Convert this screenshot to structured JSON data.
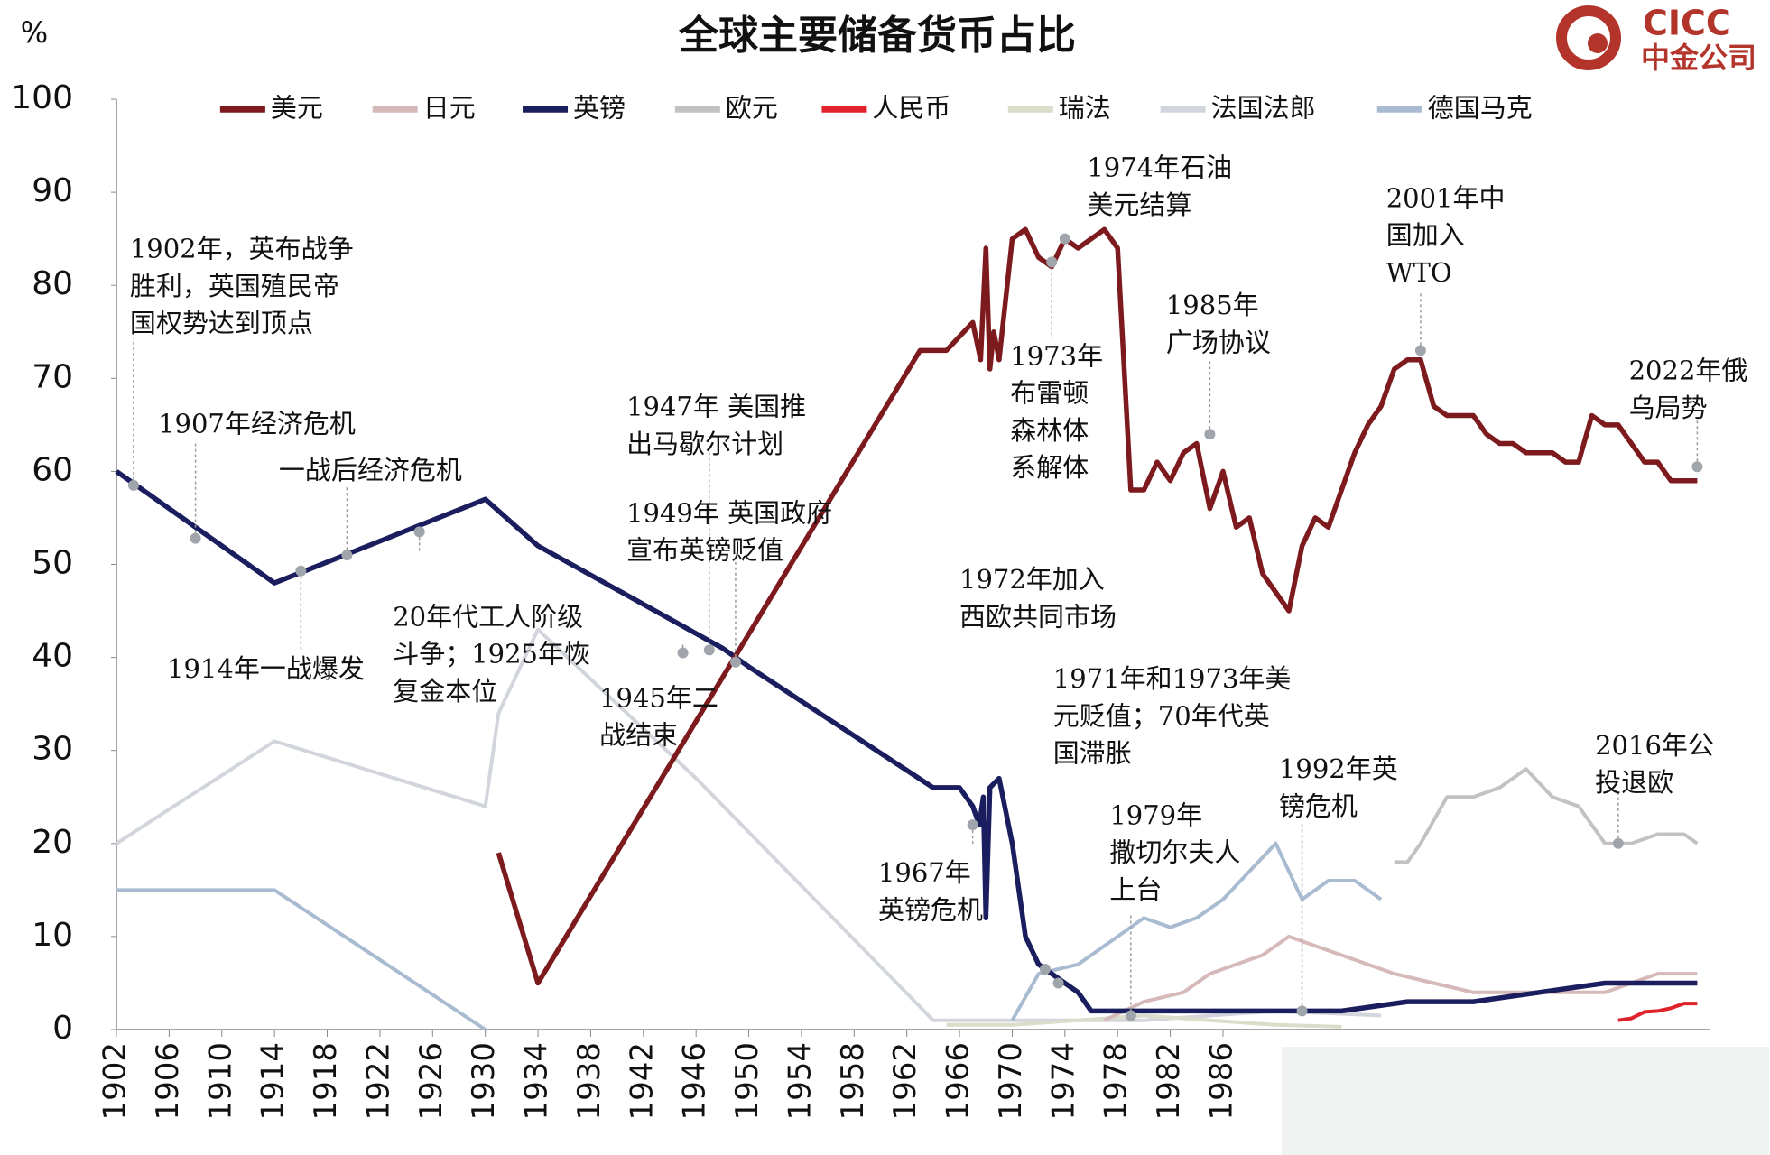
{
  "chart_data": {
    "type": "line",
    "title": "全球主要储备货币占比",
    "y_unit": "%",
    "logo": {
      "name": "CICC",
      "subname": "中金公司"
    },
    "legend": "top",
    "xlim": [
      1902,
      2023
    ],
    "xticks": [
      1902,
      1906,
      1910,
      1914,
      1918,
      1922,
      1926,
      1930,
      1934,
      1938,
      1942,
      1946,
      1950,
      1954,
      1958,
      1962,
      1966,
      1970,
      1974,
      1978,
      1982,
      1986
    ],
    "ylim": [
      0,
      100
    ],
    "yticks": [
      0,
      10,
      20,
      30,
      40,
      50,
      60,
      70,
      80,
      90,
      100
    ],
    "series": [
      {
        "name": "美元",
        "color": "#7d1a1e",
        "x": [
          1931,
          1934,
          1963,
          1965,
          1967,
          1967.6,
          1968,
          1968.3,
          1968.6,
          1969,
          1970,
          1971,
          1972,
          1973,
          1974,
          1975,
          1976,
          1977,
          1978,
          1979,
          1980,
          1981,
          1982,
          1983,
          1984,
          1985,
          1986,
          1987,
          1988,
          1989,
          1990,
          1991,
          1992,
          1993,
          1994,
          1995,
          1996,
          1997,
          1998,
          1999,
          2000,
          2001,
          2002,
          2003,
          2004,
          2005,
          2006,
          2007,
          2008,
          2009,
          2010,
          2011,
          2012,
          2013,
          2014,
          2015,
          2016,
          2017,
          2018,
          2019,
          2020,
          2021,
          2022
        ],
        "values": [
          19,
          5,
          73,
          73,
          76,
          72,
          84,
          71,
          75,
          72,
          85,
          86,
          83,
          82,
          85,
          84,
          85,
          86,
          84,
          58,
          58,
          61,
          59,
          62,
          63,
          56,
          60,
          54,
          55,
          49,
          47,
          45,
          52,
          55,
          54,
          58,
          62,
          65,
          67,
          71,
          72,
          72,
          67,
          66,
          66,
          66,
          64,
          63,
          63,
          62,
          62,
          62,
          61,
          61,
          66,
          65,
          65,
          63,
          61,
          61,
          59,
          59,
          59
        ]
      },
      {
        "name": "日元",
        "color": "#d6b9b9",
        "x": [
          1977,
          1980,
          1983,
          1985,
          1987,
          1989,
          1991,
          1993,
          1995,
          1997,
          1999,
          2002,
          2005,
          2010,
          2015,
          2019,
          2022
        ],
        "values": [
          1,
          3,
          4,
          6,
          7,
          8,
          10,
          9,
          8,
          7,
          6,
          5,
          4,
          4,
          4,
          6,
          6
        ]
      },
      {
        "name": "英镑",
        "color": "#1a1d5e",
        "x": [
          1902,
          1914,
          1930,
          1934,
          1948,
          1950,
          1964,
          1966,
          1967,
          1967.5,
          1967.8,
          1968,
          1968.3,
          1969,
          1970,
          1971,
          1972,
          1973,
          1974,
          1975,
          1976,
          1978,
          1980,
          1985,
          1990,
          1995,
          2000,
          2005,
          2010,
          2015,
          2020,
          2022
        ],
        "values": [
          60,
          48,
          57,
          52,
          41,
          39,
          26,
          26,
          24,
          22,
          25,
          12,
          26,
          27,
          20,
          10,
          7,
          6,
          5,
          4,
          2,
          2,
          2,
          2,
          2,
          2,
          3,
          3,
          4,
          5,
          5,
          5
        ]
      },
      {
        "name": "欧元",
        "color": "#c2c2c2",
        "x": [
          1999,
          2000,
          2001,
          2003,
          2005,
          2007,
          2009,
          2011,
          2013,
          2015,
          2017,
          2019,
          2021,
          2022
        ],
        "values": [
          18,
          18,
          20,
          25,
          25,
          26,
          28,
          25,
          24,
          20,
          20,
          21,
          21,
          20
        ]
      },
      {
        "name": "人民币",
        "color": "#e0222a",
        "x": [
          2016,
          2017,
          2018,
          2019,
          2020,
          2021,
          2022
        ],
        "values": [
          1,
          1.2,
          1.9,
          2,
          2.3,
          2.8,
          2.8
        ]
      },
      {
        "name": "瑞法",
        "color": "#dcdccb",
        "x": [
          1965,
          1970,
          1975,
          1980,
          1985,
          1990,
          1995
        ],
        "values": [
          0.5,
          0.5,
          1,
          1.5,
          1,
          0.5,
          0.3
        ]
      },
      {
        "name": "法国法郎",
        "color": "#d2d6dc",
        "x": [
          1902,
          1914,
          1930,
          1931,
          1934,
          1946,
          1964,
          1970,
          1980,
          1990,
          1998
        ],
        "values": [
          20,
          31,
          24,
          34,
          43,
          27,
          1,
          1,
          1,
          2,
          1.5
        ]
      },
      {
        "name": "德国马克",
        "color": "#a9bbd0",
        "x": [
          1902,
          1914,
          1930,
          1950,
          1970,
          1972,
          1975,
          1977,
          1980,
          1982,
          1984,
          1986,
          1988,
          1990,
          1991,
          1992,
          1994,
          1996,
          1998
        ],
        "values": [
          15,
          15,
          0,
          null,
          1,
          6,
          7,
          9,
          12,
          11,
          12,
          14,
          17,
          20,
          17,
          14,
          16,
          16,
          14
        ]
      }
    ],
    "annotations": [
      {
        "text": [
          "1902年，英布战争",
          "胜利，英国殖民帝",
          "国权势达到顶点"
        ],
        "x": 1903.3,
        "y": 58.5
      },
      {
        "text": [
          "1907年经济危机"
        ],
        "x": 1908,
        "y": 52.8
      },
      {
        "text": [
          "一战后经济危机"
        ],
        "x": 1919.5,
        "y": 51
      },
      {
        "text": [
          "1914年一战爆发"
        ],
        "x": 1916,
        "y": 49.3
      },
      {
        "text": [
          "20年代工人阶级",
          "斗争；1925年恢",
          "复金本位"
        ],
        "x": 1925,
        "y": 53.5
      },
      {
        "text": [
          "1947年 美国推",
          "出马歇尔计划"
        ],
        "x": 1947,
        "y": 40.8
      },
      {
        "text": [
          "1949年 英国政府",
          "宣布英镑贬值"
        ],
        "x": 1949,
        "y": 39.5
      },
      {
        "text": [
          "1945年二",
          "战结束"
        ],
        "x": 1945,
        "y": 40.5
      },
      {
        "text": [
          "1967年",
          "英镑危机"
        ],
        "x": 1967,
        "y": 22
      },
      {
        "text": [
          "1972年加入",
          "西欧共同市场"
        ],
        "x": 1972.5,
        "y": 6.5
      },
      {
        "text": [
          "1971年和1973年美",
          "元贬值；70年代英",
          "国滞胀"
        ],
        "x": 1973.5,
        "y": 5
      },
      {
        "text": [
          "1974年石油",
          "美元结算"
        ],
        "x": 1974,
        "y": 85
      },
      {
        "text": [
          "1973年",
          "布雷顿",
          "森林体",
          "系解体"
        ],
        "x": 1973,
        "y": 82.5
      },
      {
        "text": [
          "1985年",
          "广场协议"
        ],
        "x": 1985,
        "y": 64
      },
      {
        "text": [
          "2001年中",
          "国加入",
          "WTO"
        ],
        "x": 2001,
        "y": 73
      },
      {
        "text": [
          "2022年俄",
          "乌局势"
        ],
        "x": 2022,
        "y": 60.5
      },
      {
        "text": [
          "1979年",
          "撒切尔夫人",
          "上台"
        ],
        "x": 1979,
        "y": 1.5
      },
      {
        "text": [
          "1992年英",
          "镑危机"
        ],
        "x": 1992,
        "y": 2
      },
      {
        "text": [
          "2016年公",
          "投退欧"
        ],
        "x": 2016,
        "y": 20
      }
    ]
  }
}
